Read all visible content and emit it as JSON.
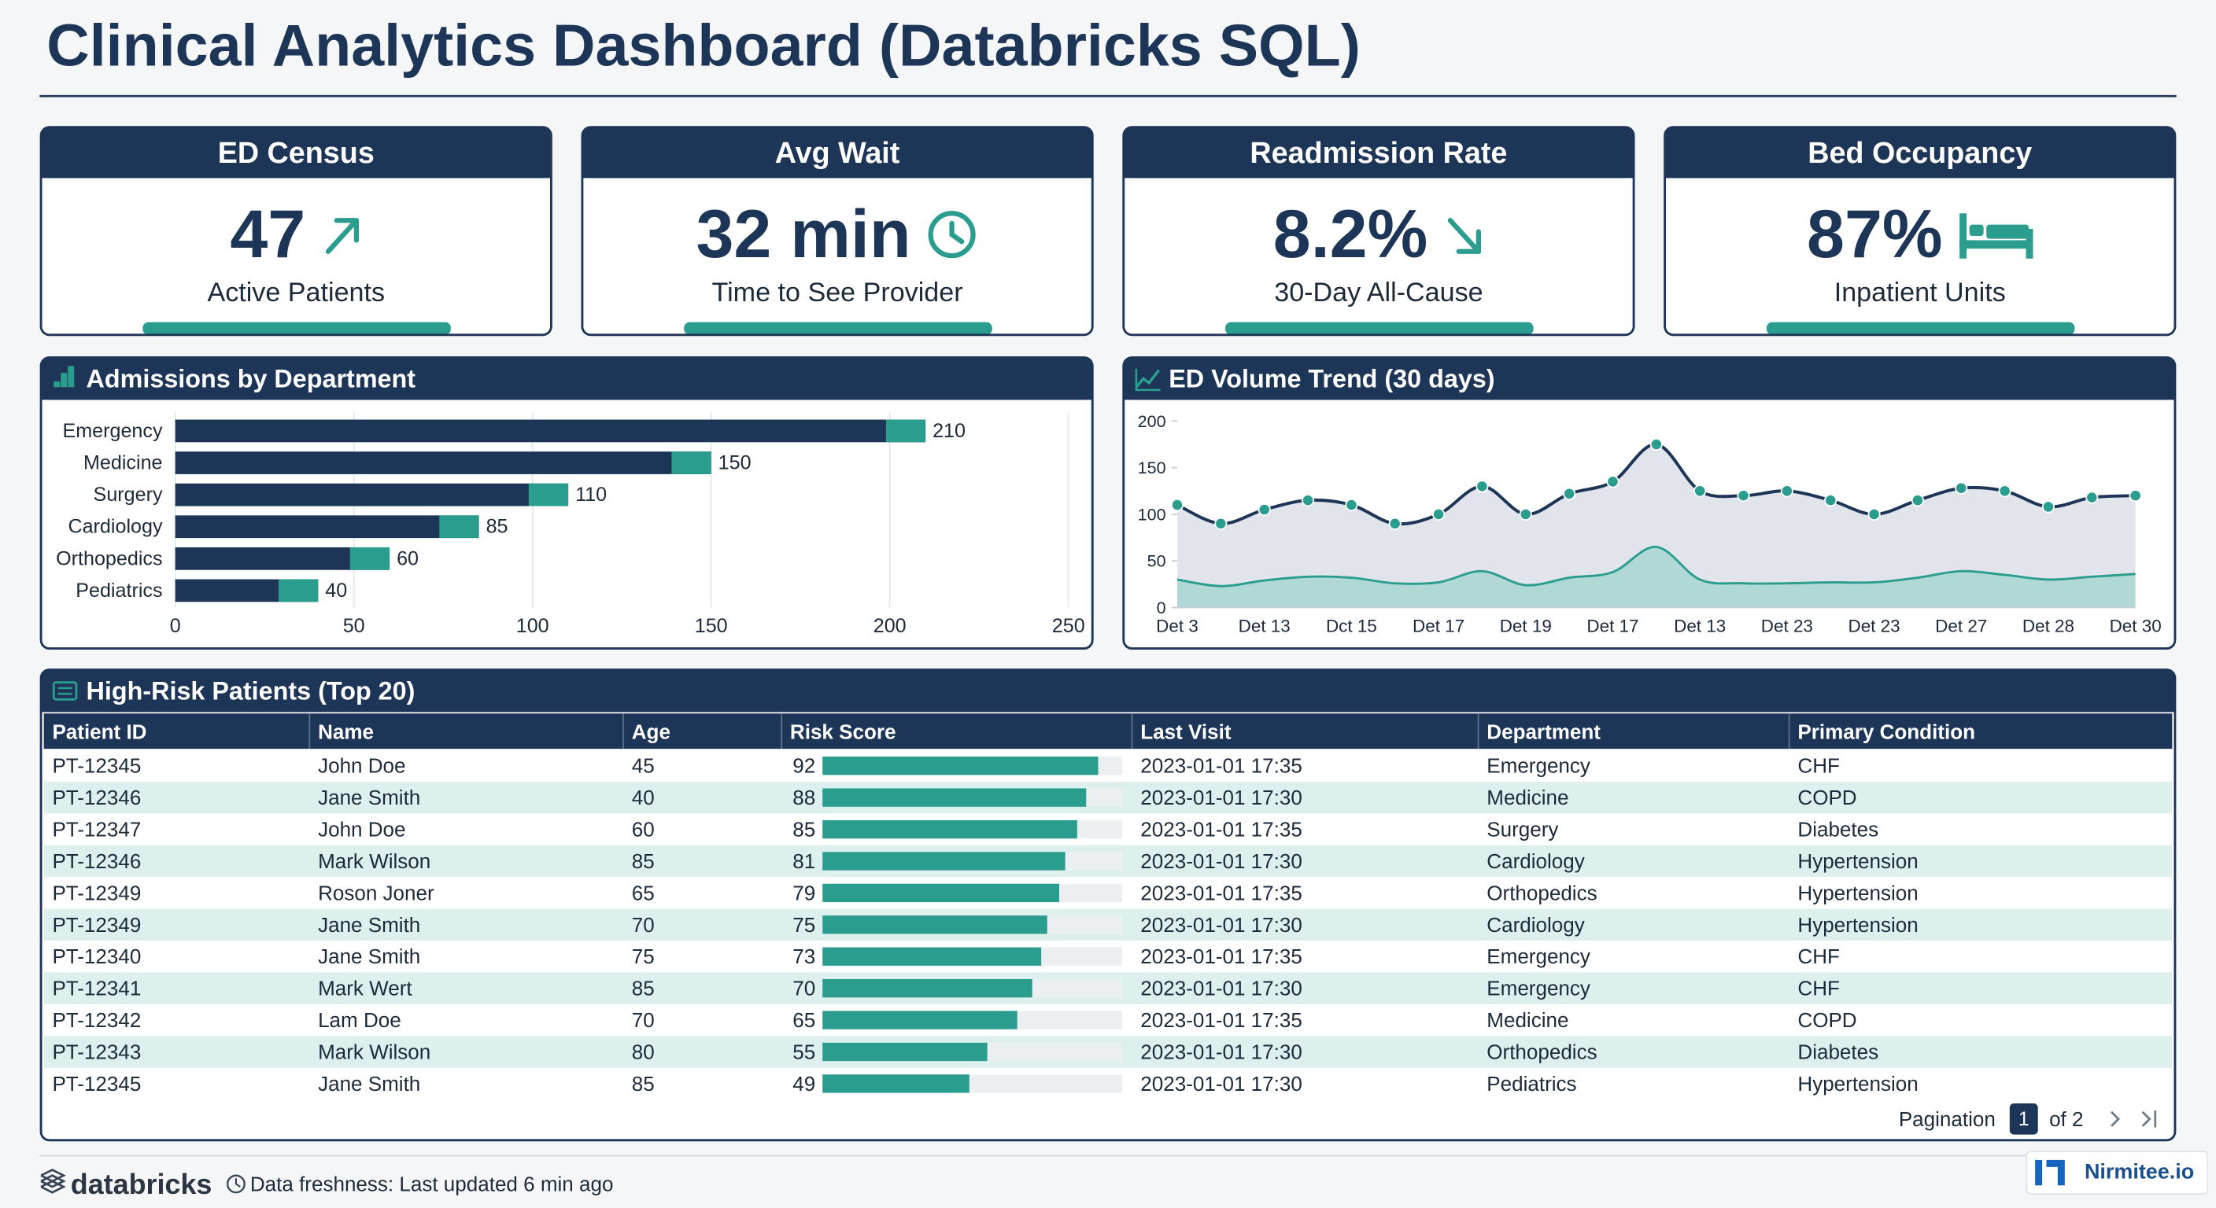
{
  "header": {
    "title": "Clinical Analytics Dashboard (Databricks SQL)"
  },
  "kpis": [
    {
      "title": "ED Census",
      "value": "47",
      "caption": "Active Patients"
    },
    {
      "title": "Avg Wait",
      "value": "32 min",
      "caption": "Time to See Provider"
    },
    {
      "title": "Readmission Rate",
      "value": "8.2%",
      "caption": "30-Day All-Cause"
    },
    {
      "title": "Bed Occupancy",
      "value": "87%",
      "caption": "Inpatient Units"
    }
  ],
  "chart_data": [
    {
      "type": "bar",
      "title": "Admissions by Department",
      "orientation": "horizontal",
      "categories": [
        "Emergency",
        "Medicine",
        "Surgery",
        "Cardiology",
        "Orthopedics",
        "Pediatrics"
      ],
      "values": [
        210,
        150,
        110,
        85,
        60,
        40
      ],
      "color": "#1d3557",
      "xlim": [
        0,
        250
      ],
      "xticks": [
        0,
        50,
        100,
        150,
        200,
        250
      ],
      "grid": true
    },
    {
      "type": "line",
      "title": "ED Volume Trend (30 days)",
      "categories": [
        "Det 3",
        null,
        "Det 13",
        null,
        "Dct 15",
        null,
        "Det 17",
        null,
        "Det 19",
        null,
        "Det 17",
        null,
        "Det 13",
        null,
        "Det 23",
        null,
        "Det 23",
        null,
        "Det 27",
        null,
        "Det 28",
        null,
        "Det 30"
      ],
      "series": [
        {
          "color": "#1d3557",
          "values": [
            110,
            90,
            105,
            115,
            110,
            90,
            100,
            130,
            100,
            122,
            135,
            175,
            125,
            120,
            125,
            115,
            100,
            115,
            128,
            125,
            108,
            118,
            120
          ]
        },
        {
          "color": "#2a9d8f",
          "values": [
            30,
            23,
            29,
            33,
            32,
            26,
            27,
            39,
            24,
            32,
            38,
            65,
            30,
            26,
            26,
            27,
            27,
            32,
            39,
            35,
            30,
            33,
            36
          ]
        }
      ],
      "ylim": [
        0,
        200
      ],
      "yticks": [
        0,
        50,
        100,
        150,
        200
      ],
      "grid": false
    }
  ],
  "table": {
    "title": "High-Risk Patients (Top 20)",
    "columns": [
      "Patient ID",
      "Name",
      "Age",
      "Risk Score",
      "Last Visit",
      "Department",
      "Primary Condition"
    ],
    "risk_range": [
      0,
      100
    ],
    "rows": [
      [
        "PT-12345",
        "John Doe",
        45,
        92,
        "2023-01-01 17:35",
        "Emergency",
        "CHF"
      ],
      [
        "PT-12346",
        "Jane Smith",
        40,
        88,
        "2023-01-01 17:30",
        "Medicine",
        "COPD"
      ],
      [
        "PT-12347",
        "John Doe",
        60,
        85,
        "2023-01-01 17:35",
        "Surgery",
        "Diabetes"
      ],
      [
        "PT-12346",
        "Mark Wilson",
        85,
        81,
        "2023-01-01 17:30",
        "Cardiology",
        "Hypertension"
      ],
      [
        "PT-12349",
        "Roson Joner",
        65,
        79,
        "2023-01-01 17:35",
        "Orthopedics",
        "Hypertension"
      ],
      [
        "PT-12349",
        "Jane Smith",
        70,
        75,
        "2023-01-01 17:30",
        "Cardiology",
        "Hypertension"
      ],
      [
        "PT-12340",
        "Jane Smith",
        75,
        73,
        "2023-01-01 17:35",
        "Emergency",
        "CHF"
      ],
      [
        "PT-12341",
        "Mark Wert",
        85,
        70,
        "2023-01-01 17:30",
        "Emergency",
        "CHF"
      ],
      [
        "PT-12342",
        "Lam Doe",
        70,
        65,
        "2023-01-01 17:35",
        "Medicine",
        "COPD"
      ],
      [
        "PT-12343",
        "Mark Wilson",
        80,
        55,
        "2023-01-01 17:30",
        "Orthopedics",
        "Diabetes"
      ],
      [
        "PT-12345",
        "Jane Smith",
        85,
        49,
        "2023-01-01 17:30",
        "Pediatrics",
        "Hypertension"
      ]
    ]
  },
  "pagination": {
    "label": "Pagination",
    "page": 1,
    "total": "of 2"
  },
  "footer": {
    "brand": "databricks",
    "freshness": "Data freshness: Last updated 6 min ago",
    "credit": "Nirmitee.io"
  }
}
